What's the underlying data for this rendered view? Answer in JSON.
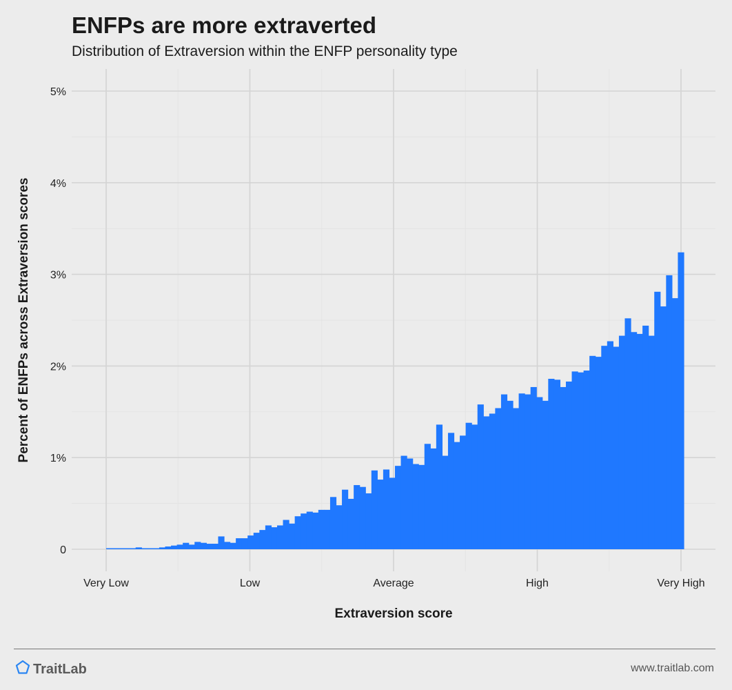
{
  "header": {
    "title": "ENFPs are more extraverted",
    "subtitle": "Distribution of Extraversion within the ENFP personality type"
  },
  "footer": {
    "brand": "TraitLab",
    "site": "www.traitlab.com",
    "brand_icon": "pentagon-icon"
  },
  "colors": {
    "bar": "#1f78ff",
    "brand_icon": "#2b86f2",
    "gridline": "#d4d4d4",
    "gridline_minor": "#e3e3e3",
    "background": "#ececec"
  },
  "chart_data": {
    "type": "bar",
    "xlabel": "Extraversion score",
    "ylabel": "Percent of ENFPs across Extraversion scores",
    "ylim": [
      0,
      5
    ],
    "yticks": [
      {
        "value": 0,
        "label": "0"
      },
      {
        "value": 1,
        "label": "1%"
      },
      {
        "value": 2,
        "label": "2%"
      },
      {
        "value": 3,
        "label": "3%"
      },
      {
        "value": 4,
        "label": "4%"
      },
      {
        "value": 5,
        "label": "5%"
      }
    ],
    "xlim": [
      0,
      100
    ],
    "xticks": [
      {
        "value": 0,
        "label": "Very Low"
      },
      {
        "value": 25,
        "label": "Low"
      },
      {
        "value": 50,
        "label": "Average"
      },
      {
        "value": 75,
        "label": "High"
      },
      {
        "value": 100,
        "label": "Very High"
      }
    ],
    "grid": true,
    "values": [
      0.01,
      0.01,
      0.01,
      0.01,
      0.01,
      0.02,
      0.01,
      0.01,
      0.01,
      0.02,
      0.03,
      0.04,
      0.05,
      0.07,
      0.05,
      0.08,
      0.07,
      0.06,
      0.06,
      0.14,
      0.08,
      0.07,
      0.12,
      0.12,
      0.15,
      0.18,
      0.21,
      0.26,
      0.24,
      0.26,
      0.32,
      0.28,
      0.36,
      0.39,
      0.41,
      0.4,
      0.43,
      0.43,
      0.57,
      0.48,
      0.65,
      0.55,
      0.7,
      0.68,
      0.61,
      0.86,
      0.76,
      0.87,
      0.78,
      0.91,
      1.02,
      0.99,
      0.93,
      0.92,
      1.15,
      1.1,
      1.36,
      1.02,
      1.27,
      1.17,
      1.24,
      1.38,
      1.36,
      1.58,
      1.45,
      1.48,
      1.54,
      1.69,
      1.62,
      1.54,
      1.7,
      1.69,
      1.77,
      1.66,
      1.62,
      1.86,
      1.85,
      1.77,
      1.83,
      1.94,
      1.93,
      1.95,
      2.11,
      2.1,
      2.22,
      2.27,
      2.21,
      2.33,
      2.52,
      2.37,
      2.35,
      2.44,
      2.33,
      2.81,
      2.65,
      2.99,
      2.74,
      3.24
    ]
  }
}
